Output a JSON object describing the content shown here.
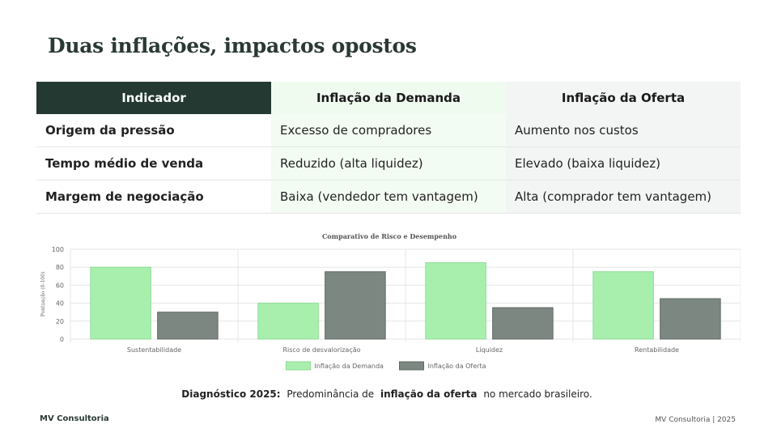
{
  "slide": {
    "title": "Duas inflações, impactos opostos"
  },
  "table": {
    "headers": [
      "Indicador",
      "Inflação da Demanda",
      "Inflação da Oferta"
    ],
    "rows": [
      [
        "Origem da pressão",
        "Excesso de compradores",
        "Aumento nos custos"
      ],
      [
        "Tempo médio de venda",
        "Reduzido (alta liquidez)",
        "Elevado (baixa liquidez)"
      ],
      [
        "Margem de negociação",
        "Baixa (vendedor tem vantagem)",
        "Alta (comprador tem vantagem)"
      ]
    ]
  },
  "chart_data": {
    "type": "bar",
    "title": "Comparativo de Risco e Desempenho",
    "ylabel": "Pontuação (0-100)",
    "xlabel": "",
    "ylim": [
      0,
      100
    ],
    "yticks": [
      0,
      20,
      40,
      60,
      80,
      100
    ],
    "grid": true,
    "legend_position": "bottom",
    "categories": [
      "Sustentabilidade",
      "Risco de desvalorização",
      "Liquidez",
      "Rentabilidade"
    ],
    "series": [
      {
        "name": "Inflação da Demanda",
        "color": "#a8efae",
        "values": [
          80,
          40,
          85,
          75
        ]
      },
      {
        "name": "Inflação da Oferta",
        "color": "#7b8780",
        "values": [
          30,
          75,
          35,
          45
        ]
      }
    ]
  },
  "diagnostic": {
    "label": "Diagnóstico 2025:",
    "prefix": "Predominância de",
    "highlight": "inflação da oferta",
    "suffix": "no mercado brasileiro."
  },
  "footer": {
    "brand": "MV Consultoria",
    "right": "MV Consultoria | 2025"
  }
}
